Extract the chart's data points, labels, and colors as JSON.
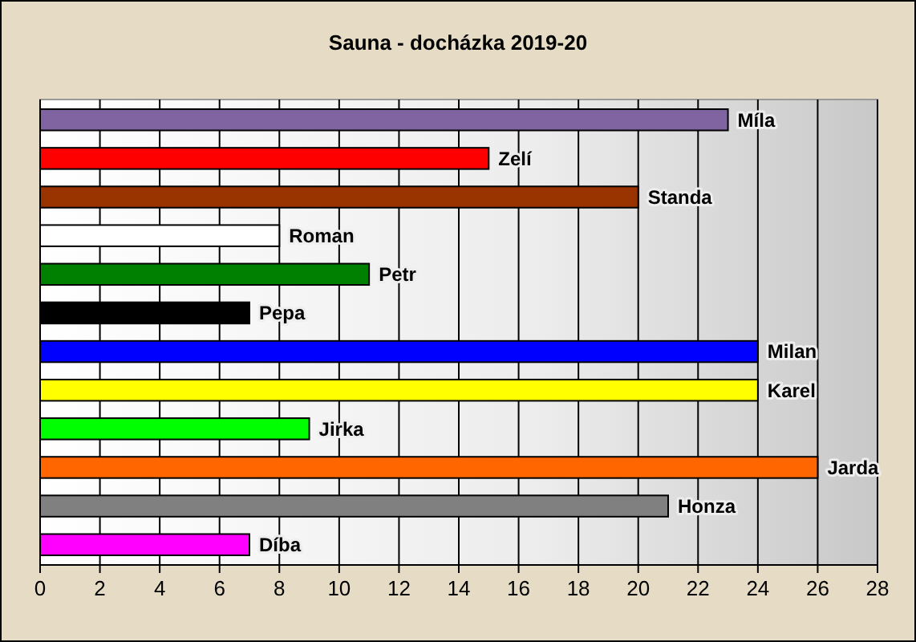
{
  "chart_data": {
    "type": "bar",
    "orientation": "horizontal",
    "title": "Sauna - docházka 2019-20",
    "categories": [
      "Míla",
      "Zelí",
      "Standa",
      "Roman",
      "Petr",
      "Pepa",
      "Milan",
      "Karel",
      "Jirka",
      "Jarda",
      "Honza",
      "Díba"
    ],
    "values": [
      23,
      15,
      20,
      8,
      11,
      7,
      24,
      24,
      9,
      26,
      21,
      7
    ],
    "colors": [
      "#8064a2",
      "#ff0000",
      "#993300",
      "#ffffff",
      "#008000",
      "#000000",
      "#0000ff",
      "#ffff00",
      "#00ff00",
      "#ff6600",
      "#808080",
      "#ff00ff"
    ],
    "xlim": [
      0,
      28
    ],
    "xticks": [
      0,
      2,
      4,
      6,
      8,
      10,
      12,
      14,
      16,
      18,
      20,
      22,
      24,
      26,
      28
    ],
    "grid": "x"
  }
}
